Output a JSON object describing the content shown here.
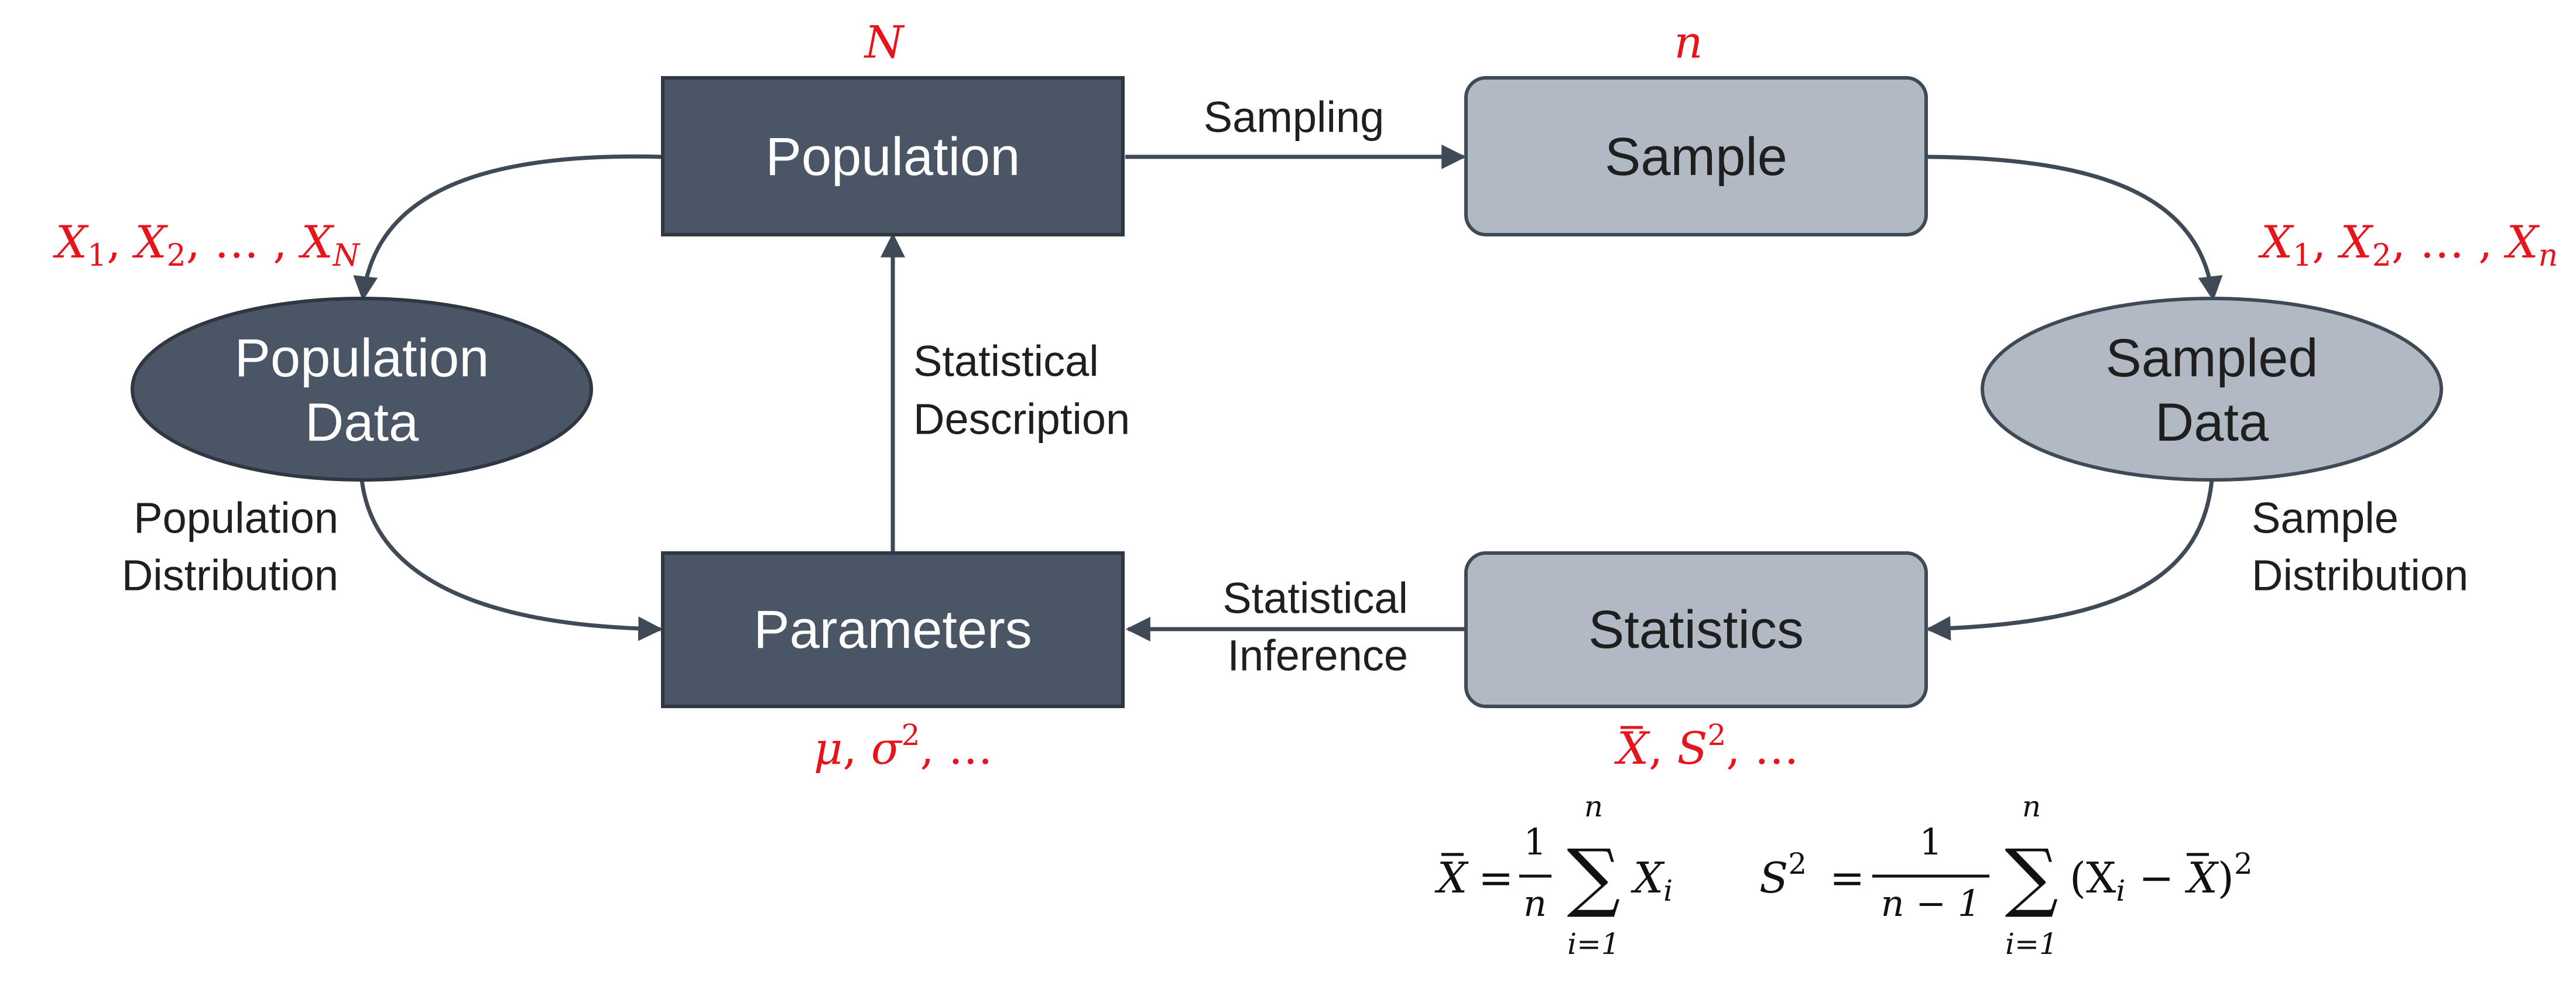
{
  "colors": {
    "dark_node": "#4a5565",
    "light_node": "#b1b9c4",
    "edge": "#404a56",
    "annotation": "#e8141b",
    "text_dark": "#1f1f1f"
  },
  "nodes": {
    "population": {
      "label": "Population"
    },
    "sample": {
      "label": "Sample"
    },
    "population_data": {
      "line1": "Population",
      "line2": "Data"
    },
    "sampled_data": {
      "line1": "Sampled",
      "line2": "Data"
    },
    "parameters": {
      "label": "Parameters"
    },
    "statistics": {
      "label": "Statistics"
    }
  },
  "edges": {
    "sampling": "Sampling",
    "statistical_description": {
      "line1": "Statistical",
      "line2": "Description"
    },
    "statistical_inference": {
      "line1": "Statistical",
      "line2": "Inference"
    },
    "population_distribution": {
      "line1": "Population",
      "line2": "Distribution"
    },
    "sample_distribution": {
      "line1": "Sample",
      "line2": "Distribution"
    }
  },
  "annotations": {
    "population_size": "N",
    "sample_size": "n",
    "population_values": {
      "first": "X",
      "first_sub": "1",
      "second": "X",
      "second_sub": "2",
      "ellipsis": "…",
      "last": "X",
      "last_sub": "N"
    },
    "sample_values": {
      "first": "X",
      "first_sub": "1",
      "second": "X",
      "second_sub": "2",
      "ellipsis": "…",
      "last": "X",
      "last_sub": "n"
    },
    "parameters": {
      "mu": "μ",
      "sigma": "σ",
      "exp": "2",
      "ellipsis": "…"
    },
    "statistics": {
      "xbar": "X",
      "s": "S",
      "exp": "2",
      "ellipsis": "…"
    }
  },
  "formulas": {
    "mean": {
      "lhs": "X",
      "equals": "=",
      "num": "1",
      "den": "n",
      "sum": "∑",
      "upper": "n",
      "lower": "i=1",
      "term": "X",
      "term_sub": "i"
    },
    "variance": {
      "lhs": "S",
      "exp": "2",
      "equals": "=",
      "num": "1",
      "den": "n − 1",
      "sum": "∑",
      "upper": "n",
      "lower": "i=1",
      "term": "(X",
      "term_sub": "i",
      "minus": " − ",
      "xbar": "X",
      "close": ")",
      "close_exp": "2"
    }
  }
}
